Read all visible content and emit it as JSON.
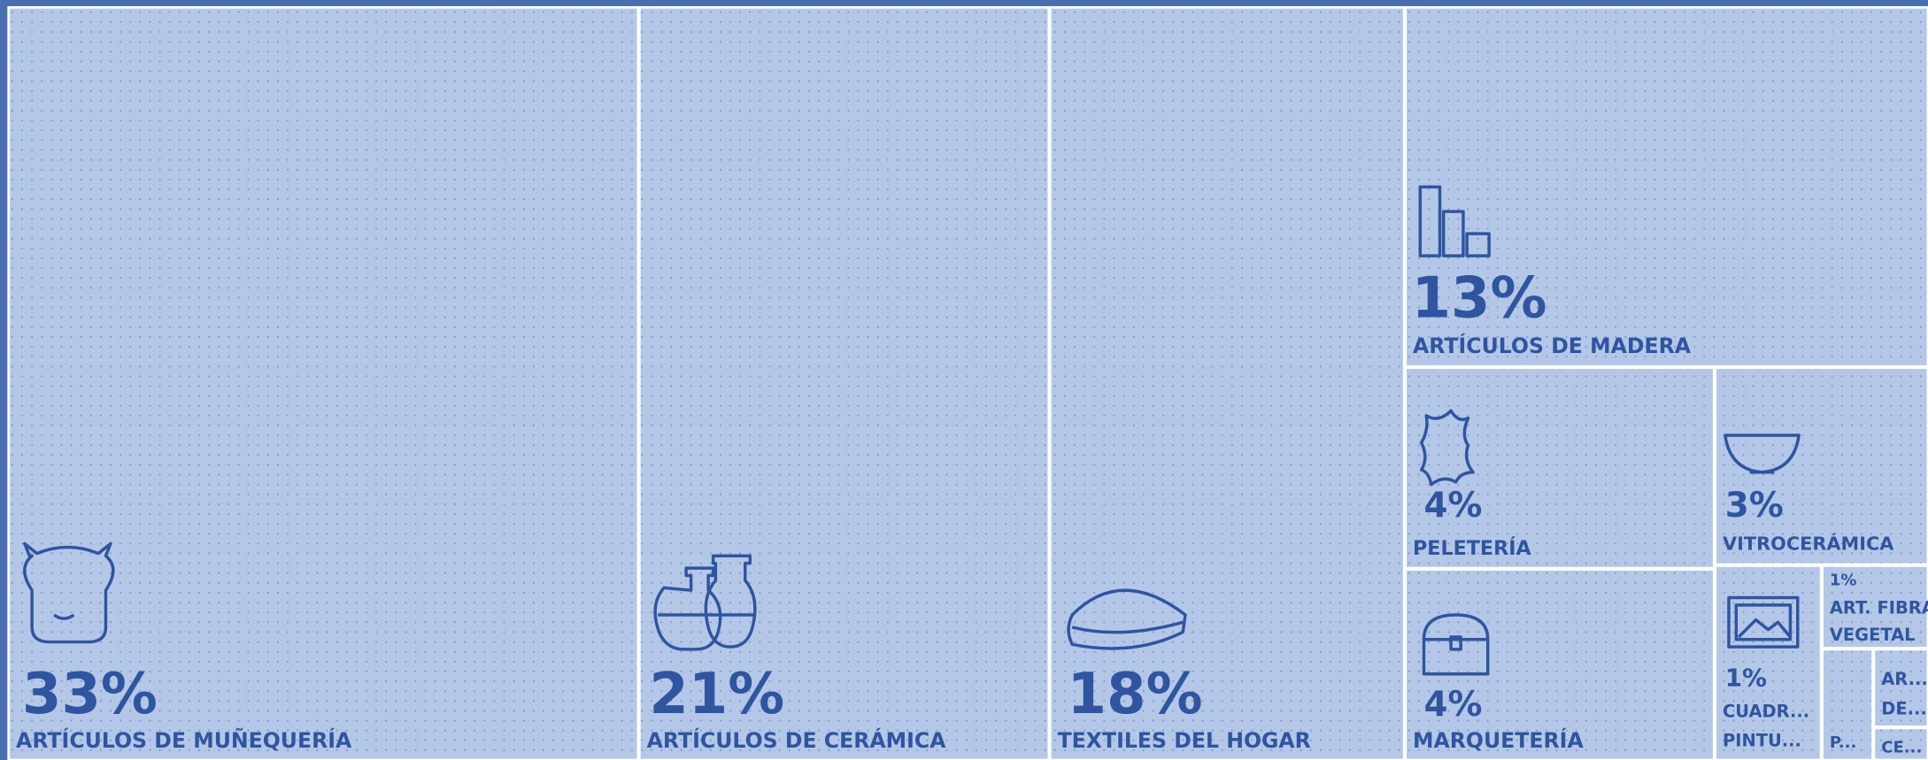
{
  "chart_data": {
    "type": "treemap",
    "color": "#b4c7e7",
    "text_color": "#2f55a0",
    "items": [
      {
        "label": [
          "ARTÍCULOS DE MUÑEQUERÍA"
        ],
        "value": 33,
        "value_label": "33%"
      },
      {
        "label": [
          "ARTÍCULOS DE CERÁMICA"
        ],
        "value": 21,
        "value_label": "21%"
      },
      {
        "label": [
          "TEXTILES DEL HOGAR"
        ],
        "value": 18,
        "value_label": "18%"
      },
      {
        "label": [
          "ARTÍCULOS DE MADERA"
        ],
        "value": 13,
        "value_label": "13%"
      },
      {
        "label": [
          "PELETERÍA"
        ],
        "value": 4,
        "value_label": "4%"
      },
      {
        "label": [
          "MARQUETERÍA"
        ],
        "value": 4,
        "value_label": "4%"
      },
      {
        "label": [
          "VITROCERÁMICA"
        ],
        "value": 3,
        "value_label": "3%"
      },
      {
        "label": [
          "ART. FIBRA",
          "VEGETAL"
        ],
        "value": 1,
        "value_label": "1%"
      },
      {
        "label": [
          "CUADR...",
          "PINTU..."
        ],
        "value": 1,
        "value_label": "1%"
      },
      {
        "label": [
          "P..."
        ],
        "value": 0.3
      },
      {
        "label": [
          "AR...",
          "DE..."
        ],
        "value": 0.2
      },
      {
        "label": [
          "CE..."
        ],
        "value": 0.1
      }
    ]
  }
}
